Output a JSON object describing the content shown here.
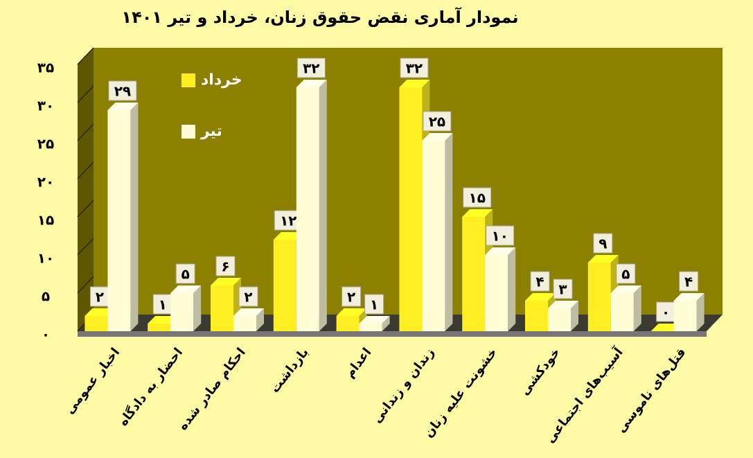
{
  "chart_data": {
    "type": "bar3d",
    "title": "نمودار آماری نقض حقوق زنان، خرداد و تیر ۱۴۰۱",
    "categories": [
      "اخبار عمومی",
      "احضار به دادگاه",
      "احکام صادر شده",
      "بازداشت",
      "اعدام",
      "زندان و زندانی",
      "خشونت علیه زنان",
      "خودکشی",
      "آسیب‌های اجتماعی",
      "قتل‌های ناموسی"
    ],
    "series": [
      {
        "name": "خرداد",
        "color": "#ffee22",
        "values": [
          2,
          1,
          6,
          12,
          2,
          32,
          15,
          4,
          9,
          0
        ],
        "value_labels": [
          "۲",
          "۱",
          "۶",
          "۱۲",
          "۲",
          "۳۲",
          "۱۵",
          "۴",
          "۹",
          "۰"
        ]
      },
      {
        "name": "تیر",
        "color": "#fffcd6",
        "values": [
          29,
          5,
          2,
          32,
          1,
          25,
          10,
          3,
          5,
          4
        ],
        "value_labels": [
          "۲۹",
          "۵",
          "۲",
          "۳۲",
          "۱",
          "۲۵",
          "۱۰",
          "۳",
          "۵",
          "۴"
        ]
      }
    ],
    "ylim": [
      0,
      35
    ],
    "yticks": [
      {
        "value": 0,
        "label": "۰"
      },
      {
        "value": 5,
        "label": "۵"
      },
      {
        "value": 10,
        "label": "۱۰"
      },
      {
        "value": 15,
        "label": "۱۵"
      },
      {
        "value": 20,
        "label": "۲۰"
      },
      {
        "value": 25,
        "label": "۲۵"
      },
      {
        "value": 30,
        "label": "۳۰"
      },
      {
        "value": 35,
        "label": "۳۵"
      }
    ],
    "grid": true,
    "legend": "top-left"
  }
}
